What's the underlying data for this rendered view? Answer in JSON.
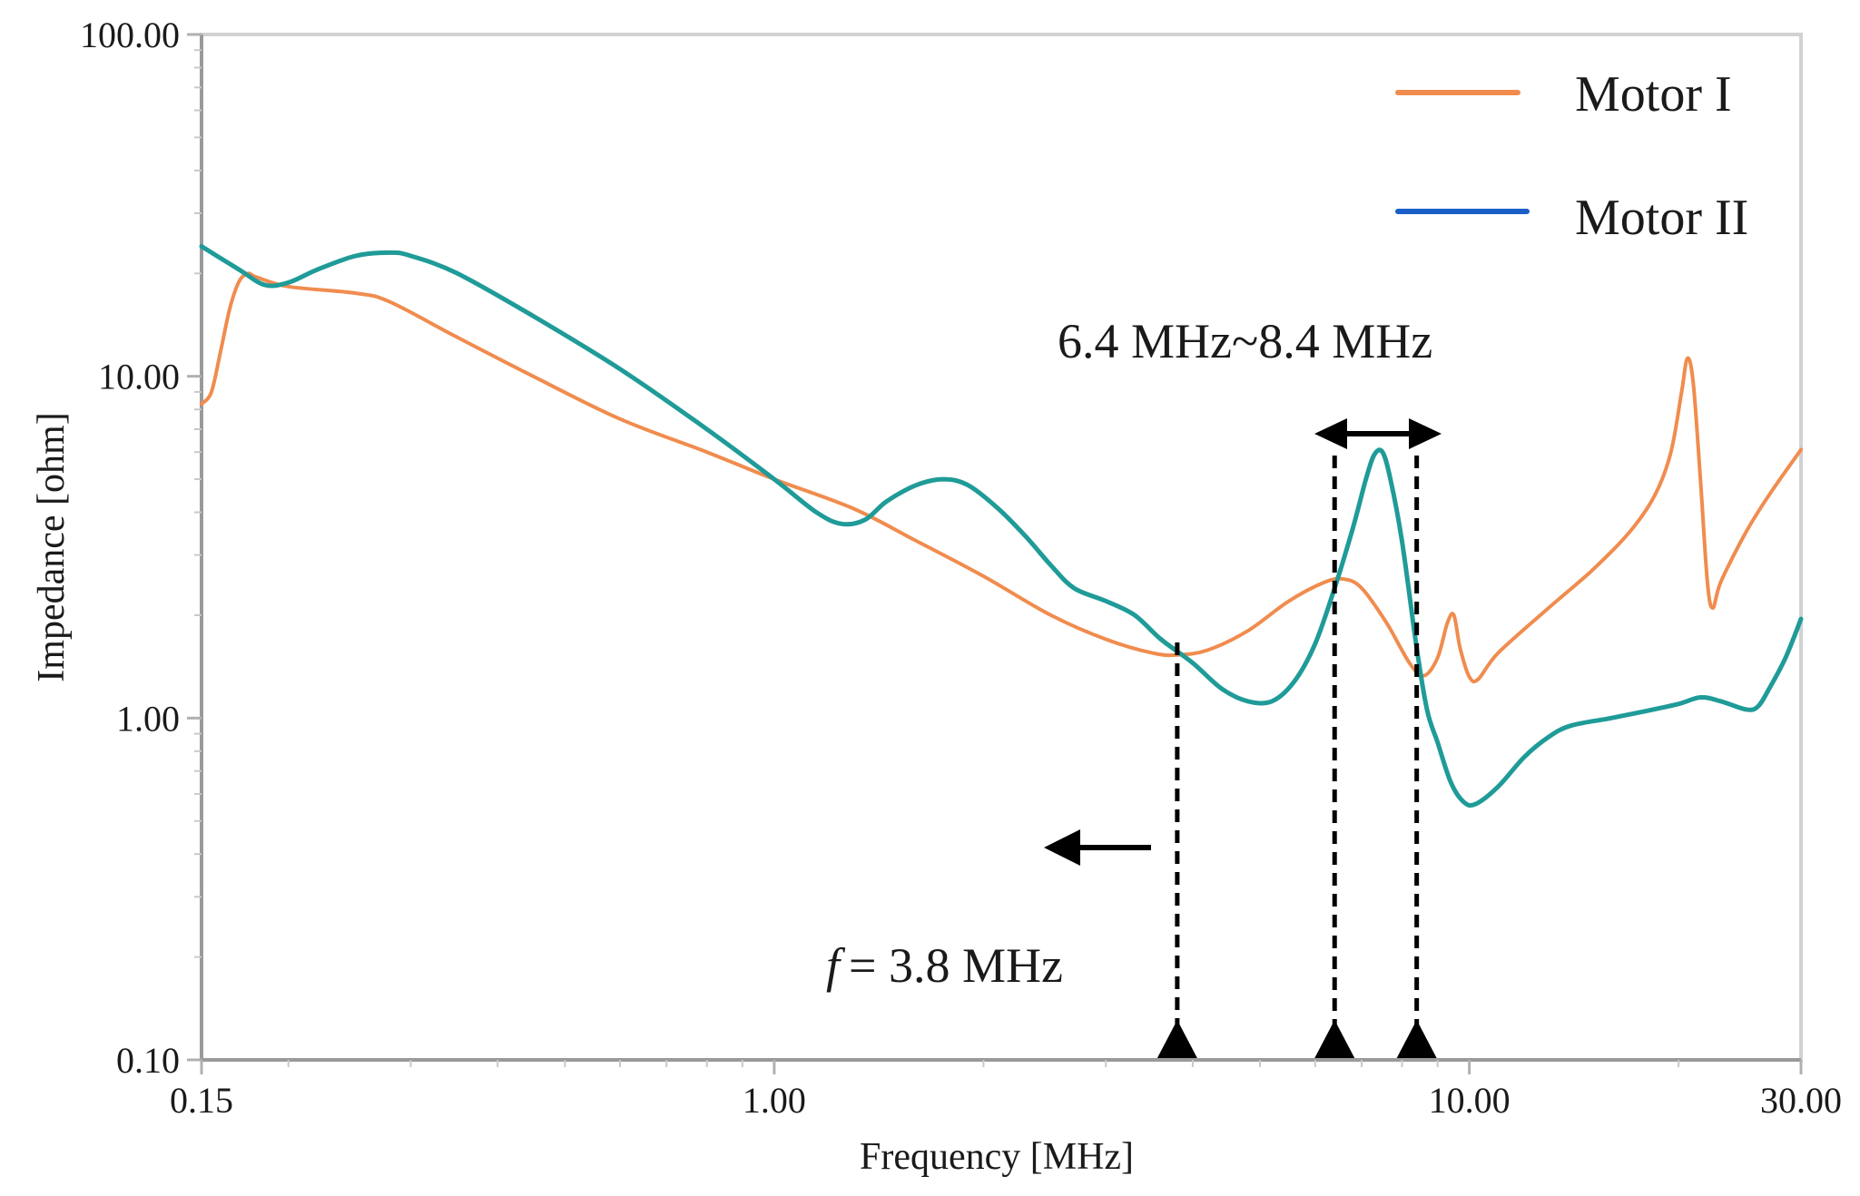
{
  "chart_data": {
    "type": "line",
    "xscale": "log",
    "yscale": "log",
    "xlabel": "Frequency [MHz]",
    "ylabel": "Impedance [ohm]",
    "xlim": [
      0.15,
      30
    ],
    "ylim": [
      0.1,
      100
    ],
    "x_ticks": [
      {
        "value": 0.15,
        "label": "0.15"
      },
      {
        "value": 1,
        "label": "1.00"
      },
      {
        "value": 10,
        "label": "10.00"
      },
      {
        "value": 30,
        "label": "30.00"
      }
    ],
    "y_ticks": [
      {
        "value": 0.1,
        "label": "0.10"
      },
      {
        "value": 1,
        "label": "1.00"
      },
      {
        "value": 10,
        "label": "10.00"
      },
      {
        "value": 100,
        "label": "100.00"
      }
    ],
    "legend_position": "top-right",
    "series": [
      {
        "name": "Motor I",
        "color": "#f08c4e",
        "stroke_width": 4,
        "points": [
          [
            0.15,
            8.3
          ],
          [
            0.155,
            9.0
          ],
          [
            0.16,
            12.0
          ],
          [
            0.165,
            16.0
          ],
          [
            0.17,
            19.0
          ],
          [
            0.175,
            20.0
          ],
          [
            0.18,
            19.5
          ],
          [
            0.2,
            18.3
          ],
          [
            0.25,
            17.5
          ],
          [
            0.28,
            16.5
          ],
          [
            0.35,
            13.0
          ],
          [
            0.45,
            10.0
          ],
          [
            0.6,
            7.5
          ],
          [
            0.8,
            6.0
          ],
          [
            1.0,
            5.0
          ],
          [
            1.3,
            4.1
          ],
          [
            1.6,
            3.3
          ],
          [
            2.0,
            2.6
          ],
          [
            2.5,
            2.0
          ],
          [
            3.0,
            1.7
          ],
          [
            3.5,
            1.55
          ],
          [
            3.8,
            1.53
          ],
          [
            4.2,
            1.58
          ],
          [
            4.8,
            1.8
          ],
          [
            5.5,
            2.2
          ],
          [
            6.2,
            2.5
          ],
          [
            6.6,
            2.55
          ],
          [
            7.0,
            2.4
          ],
          [
            7.6,
            1.9
          ],
          [
            8.2,
            1.45
          ],
          [
            8.6,
            1.33
          ],
          [
            9.0,
            1.5
          ],
          [
            9.3,
            1.9
          ],
          [
            9.5,
            2.0
          ],
          [
            9.7,
            1.6
          ],
          [
            10.0,
            1.32
          ],
          [
            10.3,
            1.3
          ],
          [
            11.0,
            1.55
          ],
          [
            13.0,
            2.1
          ],
          [
            15.0,
            2.7
          ],
          [
            17.0,
            3.5
          ],
          [
            18.5,
            4.5
          ],
          [
            19.5,
            6.0
          ],
          [
            20.2,
            9.0
          ],
          [
            20.6,
            11.3
          ],
          [
            21.0,
            9.5
          ],
          [
            21.5,
            5.0
          ],
          [
            22.0,
            2.5
          ],
          [
            22.4,
            2.1
          ],
          [
            23.0,
            2.5
          ],
          [
            25.0,
            3.5
          ],
          [
            27.0,
            4.5
          ],
          [
            30.0,
            6.1
          ]
        ]
      },
      {
        "name": "Motor II",
        "color": "#1f9b98",
        "legend_color": "#1a5fc8",
        "stroke_width": 5,
        "points": [
          [
            0.15,
            24.0
          ],
          [
            0.17,
            20.5
          ],
          [
            0.185,
            18.5
          ],
          [
            0.2,
            18.8
          ],
          [
            0.22,
            20.5
          ],
          [
            0.25,
            22.5
          ],
          [
            0.28,
            23.0
          ],
          [
            0.3,
            22.5
          ],
          [
            0.35,
            20.0
          ],
          [
            0.45,
            15.0
          ],
          [
            0.6,
            10.5
          ],
          [
            0.8,
            7.0
          ],
          [
            1.0,
            5.0
          ],
          [
            1.15,
            4.0
          ],
          [
            1.25,
            3.7
          ],
          [
            1.35,
            3.8
          ],
          [
            1.45,
            4.3
          ],
          [
            1.6,
            4.8
          ],
          [
            1.75,
            5.0
          ],
          [
            1.9,
            4.8
          ],
          [
            2.1,
            4.1
          ],
          [
            2.3,
            3.4
          ],
          [
            2.5,
            2.8
          ],
          [
            2.7,
            2.4
          ],
          [
            3.0,
            2.2
          ],
          [
            3.3,
            2.0
          ],
          [
            3.6,
            1.7
          ],
          [
            4.0,
            1.45
          ],
          [
            4.4,
            1.22
          ],
          [
            4.8,
            1.12
          ],
          [
            5.2,
            1.12
          ],
          [
            5.6,
            1.28
          ],
          [
            6.0,
            1.65
          ],
          [
            6.4,
            2.4
          ],
          [
            6.8,
            3.6
          ],
          [
            7.1,
            5.0
          ],
          [
            7.3,
            5.9
          ],
          [
            7.5,
            6.0
          ],
          [
            7.7,
            5.0
          ],
          [
            8.0,
            3.3
          ],
          [
            8.4,
            1.6
          ],
          [
            8.7,
            1.05
          ],
          [
            9.0,
            0.85
          ],
          [
            9.4,
            0.65
          ],
          [
            9.8,
            0.57
          ],
          [
            10.2,
            0.56
          ],
          [
            11.0,
            0.63
          ],
          [
            12.0,
            0.77
          ],
          [
            13.0,
            0.88
          ],
          [
            14.0,
            0.95
          ],
          [
            16.0,
            1.0
          ],
          [
            18.0,
            1.05
          ],
          [
            20.0,
            1.1
          ],
          [
            21.5,
            1.15
          ],
          [
            23.0,
            1.12
          ],
          [
            25.0,
            1.06
          ],
          [
            26.0,
            1.08
          ],
          [
            27.0,
            1.22
          ],
          [
            28.5,
            1.5
          ],
          [
            30.0,
            1.95
          ]
        ]
      }
    ],
    "annotations": {
      "range_label": "6.4 MHz~8.4 MHz",
      "range_lines_mhz": [
        6.4,
        8.4
      ],
      "freq_symbol": "f",
      "freq_value": "= 3.8 MHz",
      "freq_line_mhz": 3.8
    }
  }
}
